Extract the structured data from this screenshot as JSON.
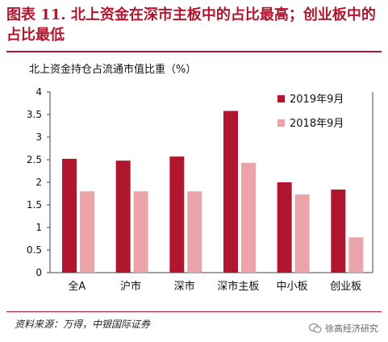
{
  "figure": {
    "title": "图表 11.  北上资金在深市主板中的占比最高；创业板中的占比最低",
    "source": "资料来源：万得，中银国际证券",
    "watermark": "徐高经济研究"
  },
  "chart_data": {
    "type": "bar",
    "ylabel": "北上资金持仓占流通市值比重（%）",
    "categories": [
      "全A",
      "沪市",
      "深市",
      "深市主板",
      "中小板",
      "创业板"
    ],
    "series": [
      {
        "name": "2019年9月",
        "color": "#b0172e",
        "values": [
          2.52,
          2.48,
          2.57,
          3.58,
          2.0,
          1.84
        ]
      },
      {
        "name": "2018年9月",
        "color": "#eba5aa",
        "values": [
          1.8,
          1.8,
          1.8,
          2.43,
          1.73,
          0.78
        ]
      }
    ],
    "ylim": [
      0,
      4
    ],
    "yticks": [
      "0",
      "0.5",
      "1",
      "1.5",
      "2",
      "2.5",
      "3",
      "3.5",
      "4"
    ],
    "grid": false,
    "legend": "top-right"
  }
}
